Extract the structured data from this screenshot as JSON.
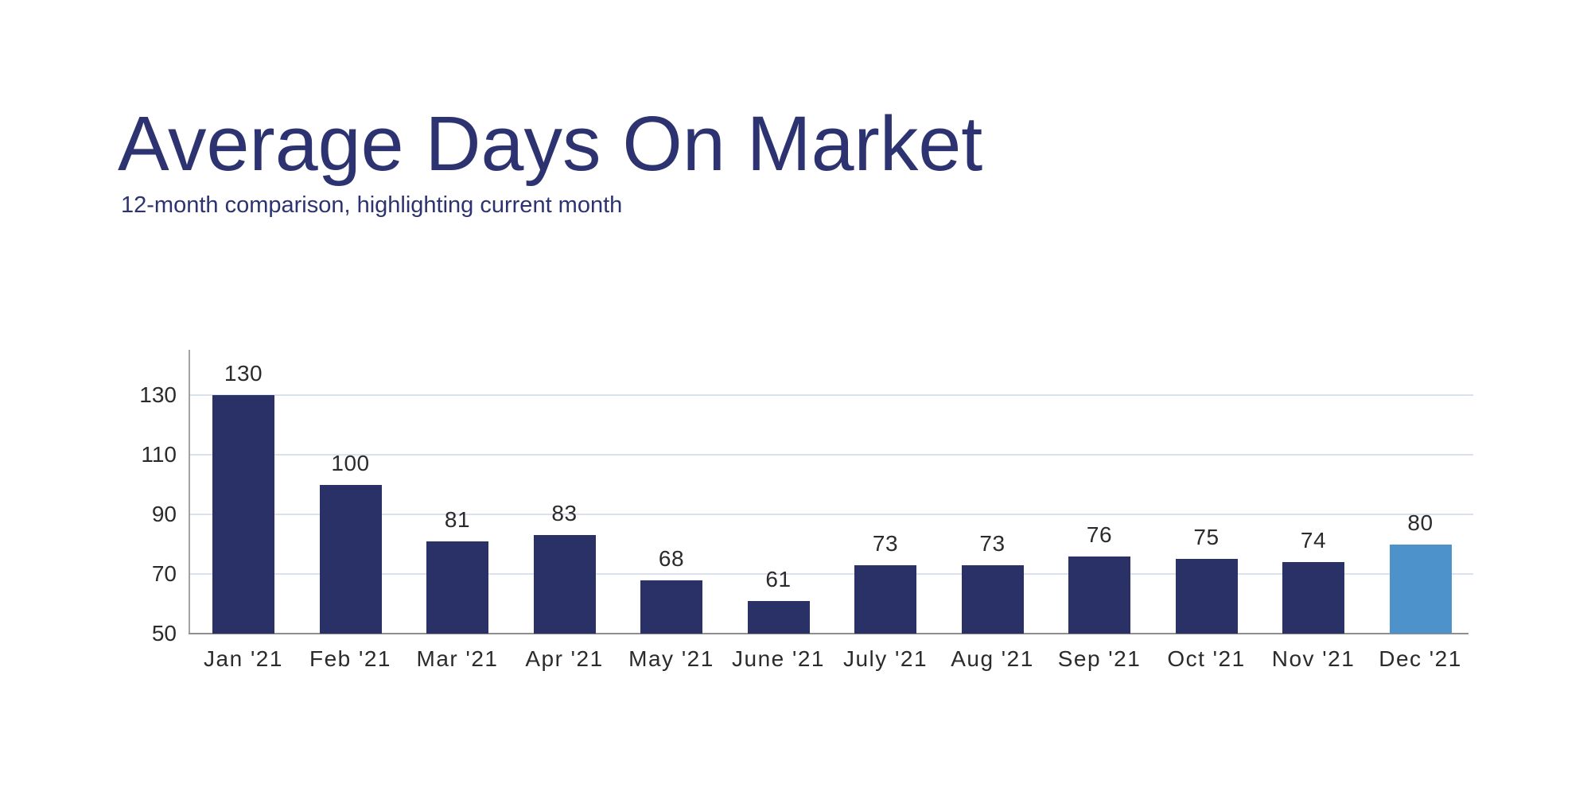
{
  "header": {
    "title": "Average Days On Market",
    "subtitle": "12-month comparison, highlighting current month"
  },
  "colors": {
    "title": "#2d3371",
    "bar": "#2a3167",
    "highlight_bar": "#4d92cb",
    "grid": "#dce1ee",
    "axis": "#8f8f8f",
    "label": "#2b2b2b"
  },
  "chart_data": {
    "type": "bar",
    "title": "Average Days On Market",
    "subtitle": "12-month comparison, highlighting current month",
    "categories": [
      "Jan '21",
      "Feb '21",
      "Mar '21",
      "Apr '21",
      "May '21",
      "June '21",
      "July '21",
      "Aug '21",
      "Sep '21",
      "Oct '21",
      "Nov '21",
      "Dec '21"
    ],
    "values": [
      130,
      100,
      81,
      83,
      68,
      61,
      73,
      73,
      76,
      75,
      74,
      80
    ],
    "value_labels": [
      "130",
      "100",
      "81",
      "83",
      "68",
      "61",
      "73",
      "73",
      "76",
      "75",
      "74",
      "80"
    ],
    "highlight_index": 11,
    "highlight_meaning": "current month",
    "y_ticks": [
      50,
      70,
      90,
      110,
      130
    ],
    "ylim": [
      50,
      145
    ],
    "grid": true,
    "legend": false,
    "xlabel": "",
    "ylabel": ""
  }
}
